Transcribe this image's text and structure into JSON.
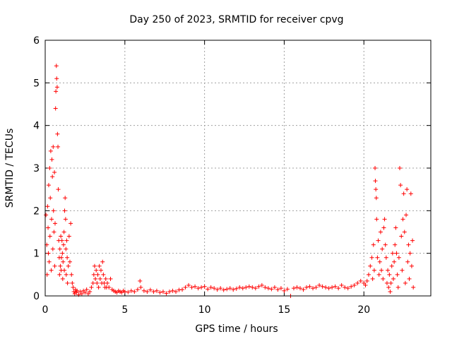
{
  "chart_data": {
    "type": "scatter",
    "title": "Day 250 of 2023, SRMTID for receiver cpvg",
    "xlabel": "GPS time / hours",
    "ylabel": "SRMTID / TECUs",
    "xlim": [
      0,
      24.2
    ],
    "ylim": [
      0,
      6
    ],
    "xticks": [
      0,
      5,
      10,
      15,
      20
    ],
    "yticks": [
      0,
      1,
      2,
      3,
      4,
      5,
      6
    ],
    "grid": true,
    "marker": "plus",
    "series_color": "#ff0000",
    "series": [
      {
        "name": "SRMTID",
        "points": [
          [
            0.05,
            1.9
          ],
          [
            0.1,
            1.2
          ],
          [
            0.12,
            0.5
          ],
          [
            0.15,
            2.1
          ],
          [
            0.18,
            1.6
          ],
          [
            0.2,
            1.0
          ],
          [
            0.22,
            2.6
          ],
          [
            0.25,
            0.8
          ],
          [
            0.28,
            3.0
          ],
          [
            0.3,
            1.4
          ],
          [
            0.32,
            2.3
          ],
          [
            0.35,
            3.4
          ],
          [
            0.38,
            0.6
          ],
          [
            0.4,
            1.8
          ],
          [
            0.42,
            3.2
          ],
          [
            0.45,
            2.8
          ],
          [
            0.48,
            1.1
          ],
          [
            0.5,
            3.5
          ],
          [
            0.52,
            2.0
          ],
          [
            0.55,
            1.5
          ],
          [
            0.58,
            2.9
          ],
          [
            0.6,
            0.7
          ],
          [
            0.62,
            1.7
          ],
          [
            0.65,
            4.4
          ],
          [
            0.67,
            4.8
          ],
          [
            0.7,
            5.4
          ],
          [
            0.72,
            5.1
          ],
          [
            0.75,
            4.9
          ],
          [
            0.77,
            3.8
          ],
          [
            0.8,
            3.5
          ],
          [
            0.82,
            2.5
          ],
          [
            0.85,
            1.3
          ],
          [
            0.88,
            0.9
          ],
          [
            0.9,
            0.5
          ],
          [
            0.92,
            1.1
          ],
          [
            0.95,
            0.7
          ],
          [
            0.98,
            1.4
          ],
          [
            1.0,
            0.6
          ],
          [
            1.02,
            0.9
          ],
          [
            1.05,
            1.3
          ],
          [
            1.08,
            1.0
          ],
          [
            1.1,
            0.4
          ],
          [
            1.12,
            0.8
          ],
          [
            1.15,
            1.2
          ],
          [
            1.18,
            1.5
          ],
          [
            1.2,
            0.6
          ],
          [
            1.22,
            2.0
          ],
          [
            1.25,
            2.3
          ],
          [
            1.28,
            1.8
          ],
          [
            1.3,
            1.1
          ],
          [
            1.32,
            0.5
          ],
          [
            1.35,
            1.3
          ],
          [
            1.38,
            0.9
          ],
          [
            1.4,
            0.3
          ],
          [
            1.45,
            0.7
          ],
          [
            1.5,
            1.4
          ],
          [
            1.55,
            0.8
          ],
          [
            1.6,
            1.7
          ],
          [
            1.65,
            0.5
          ],
          [
            1.7,
            0.3
          ],
          [
            1.75,
            0.2
          ],
          [
            1.8,
            0.1
          ],
          [
            1.85,
            0.05
          ],
          [
            1.9,
            0.15
          ],
          [
            1.95,
            0.08
          ],
          [
            2.0,
            0.12
          ],
          [
            2.1,
            0.03
          ],
          [
            2.2,
            0.1
          ],
          [
            2.3,
            0.05
          ],
          [
            2.4,
            0.12
          ],
          [
            2.5,
            0.08
          ],
          [
            2.6,
            0.15
          ],
          [
            2.7,
            0.05
          ],
          [
            2.8,
            0.1
          ],
          [
            2.9,
            0.2
          ],
          [
            3.0,
            0.3
          ],
          [
            3.05,
            0.5
          ],
          [
            3.1,
            0.7
          ],
          [
            3.15,
            0.4
          ],
          [
            3.2,
            0.6
          ],
          [
            3.25,
            0.3
          ],
          [
            3.3,
            0.5
          ],
          [
            3.35,
            0.2
          ],
          [
            3.4,
            0.7
          ],
          [
            3.45,
            0.4
          ],
          [
            3.5,
            0.6
          ],
          [
            3.55,
            0.3
          ],
          [
            3.6,
            0.8
          ],
          [
            3.65,
            0.5
          ],
          [
            3.7,
            0.3
          ],
          [
            3.75,
            0.2
          ],
          [
            3.8,
            0.4
          ],
          [
            3.85,
            0.2
          ],
          [
            3.9,
            0.3
          ],
          [
            4.0,
            0.2
          ],
          [
            4.1,
            0.4
          ],
          [
            4.2,
            0.15
          ],
          [
            4.3,
            0.12
          ],
          [
            4.4,
            0.1
          ],
          [
            4.5,
            0.08
          ],
          [
            4.6,
            0.12
          ],
          [
            4.7,
            0.1
          ],
          [
            4.8,
            0.08
          ],
          [
            4.9,
            0.12
          ],
          [
            5.0,
            0.1
          ],
          [
            5.2,
            0.09
          ],
          [
            5.4,
            0.12
          ],
          [
            5.6,
            0.1
          ],
          [
            5.8,
            0.15
          ],
          [
            5.95,
            0.35
          ],
          [
            6.0,
            0.2
          ],
          [
            6.2,
            0.12
          ],
          [
            6.4,
            0.1
          ],
          [
            6.6,
            0.14
          ],
          [
            6.8,
            0.1
          ],
          [
            7.0,
            0.12
          ],
          [
            7.2,
            0.08
          ],
          [
            7.4,
            0.1
          ],
          [
            7.6,
            0.06
          ],
          [
            7.8,
            0.1
          ],
          [
            8.0,
            0.12
          ],
          [
            8.2,
            0.1
          ],
          [
            8.4,
            0.14
          ],
          [
            8.6,
            0.15
          ],
          [
            8.8,
            0.2
          ],
          [
            9.0,
            0.25
          ],
          [
            9.2,
            0.2
          ],
          [
            9.4,
            0.22
          ],
          [
            9.6,
            0.18
          ],
          [
            9.8,
            0.2
          ],
          [
            10.0,
            0.22
          ],
          [
            10.2,
            0.16
          ],
          [
            10.4,
            0.2
          ],
          [
            10.6,
            0.18
          ],
          [
            10.8,
            0.15
          ],
          [
            11.0,
            0.18
          ],
          [
            11.2,
            0.14
          ],
          [
            11.4,
            0.16
          ],
          [
            11.6,
            0.18
          ],
          [
            11.8,
            0.15
          ],
          [
            12.0,
            0.17
          ],
          [
            12.2,
            0.2
          ],
          [
            12.4,
            0.18
          ],
          [
            12.6,
            0.2
          ],
          [
            12.8,
            0.22
          ],
          [
            13.0,
            0.2
          ],
          [
            13.2,
            0.18
          ],
          [
            13.4,
            0.22
          ],
          [
            13.6,
            0.25
          ],
          [
            13.8,
            0.2
          ],
          [
            14.0,
            0.18
          ],
          [
            14.2,
            0.16
          ],
          [
            14.4,
            0.2
          ],
          [
            14.6,
            0.15
          ],
          [
            14.8,
            0.18
          ],
          [
            15.0,
            0.12
          ],
          [
            15.2,
            0.16
          ],
          [
            15.4,
            0.0
          ],
          [
            15.6,
            0.18
          ],
          [
            15.8,
            0.2
          ],
          [
            16.0,
            0.18
          ],
          [
            16.2,
            0.15
          ],
          [
            16.4,
            0.2
          ],
          [
            16.6,
            0.22
          ],
          [
            16.8,
            0.18
          ],
          [
            17.0,
            0.2
          ],
          [
            17.2,
            0.25
          ],
          [
            17.4,
            0.22
          ],
          [
            17.6,
            0.2
          ],
          [
            17.8,
            0.18
          ],
          [
            18.0,
            0.2
          ],
          [
            18.2,
            0.22
          ],
          [
            18.4,
            0.18
          ],
          [
            18.6,
            0.25
          ],
          [
            18.8,
            0.2
          ],
          [
            19.0,
            0.18
          ],
          [
            19.2,
            0.22
          ],
          [
            19.4,
            0.25
          ],
          [
            19.6,
            0.3
          ],
          [
            19.8,
            0.35
          ],
          [
            20.0,
            0.3
          ],
          [
            20.1,
            0.25
          ],
          [
            20.2,
            0.35
          ],
          [
            20.3,
            0.5
          ],
          [
            20.4,
            0.7
          ],
          [
            20.5,
            0.9
          ],
          [
            20.55,
            0.4
          ],
          [
            20.6,
            1.2
          ],
          [
            20.65,
            0.6
          ],
          [
            20.7,
            3.0
          ],
          [
            20.72,
            2.7
          ],
          [
            20.75,
            2.5
          ],
          [
            20.78,
            2.3
          ],
          [
            20.8,
            1.8
          ],
          [
            20.85,
            0.9
          ],
          [
            20.9,
            1.3
          ],
          [
            20.95,
            0.5
          ],
          [
            21.0,
            0.8
          ],
          [
            21.05,
            1.5
          ],
          [
            21.1,
            0.6
          ],
          [
            21.15,
            1.1
          ],
          [
            21.2,
            0.4
          ],
          [
            21.25,
            1.6
          ],
          [
            21.3,
            1.8
          ],
          [
            21.35,
            1.2
          ],
          [
            21.4,
            0.9
          ],
          [
            21.45,
            0.3
          ],
          [
            21.5,
            0.6
          ],
          [
            21.55,
            0.2
          ],
          [
            21.6,
            0.5
          ],
          [
            21.65,
            0.1
          ],
          [
            21.7,
            0.3
          ],
          [
            21.75,
            0.7
          ],
          [
            21.8,
            1.0
          ],
          [
            21.85,
            0.4
          ],
          [
            21.9,
            0.8
          ],
          [
            21.95,
            1.2
          ],
          [
            22.0,
            1.6
          ],
          [
            22.05,
            1.0
          ],
          [
            22.1,
            0.5
          ],
          [
            22.15,
            0.2
          ],
          [
            22.2,
            0.9
          ],
          [
            22.25,
            3.0
          ],
          [
            22.3,
            2.6
          ],
          [
            22.35,
            1.4
          ],
          [
            22.4,
            0.6
          ],
          [
            22.45,
            1.8
          ],
          [
            22.5,
            2.4
          ],
          [
            22.55,
            1.5
          ],
          [
            22.6,
            0.3
          ],
          [
            22.65,
            1.9
          ],
          [
            22.7,
            2.5
          ],
          [
            22.75,
            0.8
          ],
          [
            22.8,
            1.2
          ],
          [
            22.85,
            0.4
          ],
          [
            22.9,
            1.0
          ],
          [
            22.95,
            2.4
          ],
          [
            23.0,
            0.7
          ],
          [
            23.05,
            1.3
          ],
          [
            23.1,
            0.2
          ]
        ]
      }
    ]
  }
}
